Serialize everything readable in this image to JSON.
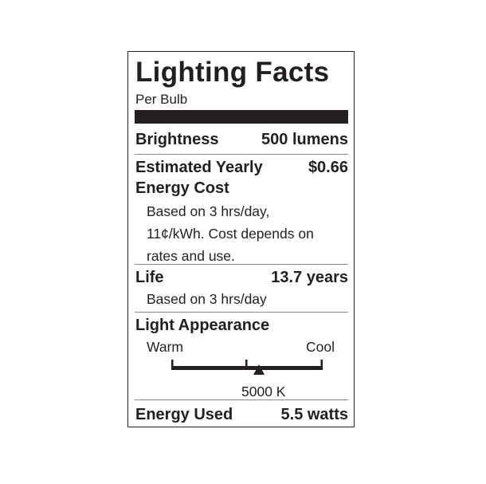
{
  "title": "Lighting Facts",
  "subtitle": "Per Bulb",
  "brightness": {
    "label": "Brightness",
    "value": "500 lumens"
  },
  "cost": {
    "label_line1": "Estimated Yearly",
    "label_line2": "Energy Cost",
    "value": "$0.66",
    "note_lines": [
      "Based on 3 hrs/day,",
      "11¢/kWh. Cost depends on",
      "rates and use."
    ]
  },
  "life": {
    "label": "Life",
    "value": "13.7 years",
    "note": "Based on 3 hrs/day"
  },
  "appearance": {
    "label": "Light Appearance",
    "warm": "Warm",
    "cool": "Cool",
    "value": "5000 K",
    "marker_fraction": 0.58
  },
  "energy": {
    "label": "Energy Used",
    "value": "5.5 watts"
  },
  "colors": {
    "ink": "#231f20",
    "divider": "#8a8a8a"
  }
}
